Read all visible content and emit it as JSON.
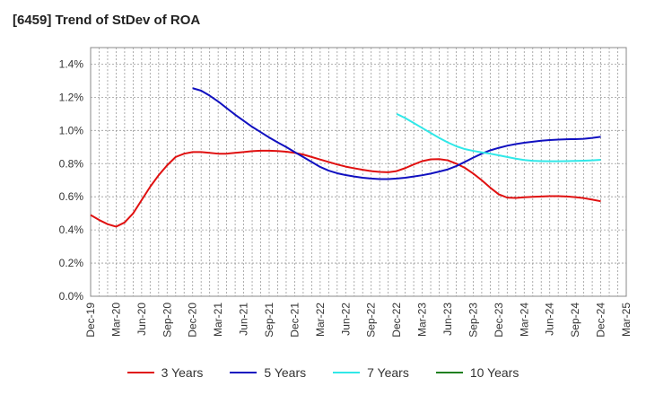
{
  "chart_data": {
    "type": "line",
    "title": "[6459]  Trend of StDev of ROA",
    "xlabel": "",
    "ylabel": "",
    "ylim": [
      0,
      1.5
    ],
    "y_ticks": [
      0,
      0.2,
      0.4,
      0.6,
      0.8,
      1.0,
      1.2,
      1.4
    ],
    "y_tick_labels": [
      "0.0%",
      "0.2%",
      "0.4%",
      "0.6%",
      "0.8%",
      "1.0%",
      "1.2%",
      "1.4%"
    ],
    "x_tick_labels": [
      "Dec-19",
      "Mar-20",
      "Jun-20",
      "Sep-20",
      "Dec-20",
      "Mar-21",
      "Jun-21",
      "Sep-21",
      "Dec-21",
      "Mar-22",
      "Jun-22",
      "Sep-22",
      "Dec-22",
      "Mar-23",
      "Jun-23",
      "Sep-23",
      "Dec-23",
      "Mar-24",
      "Jun-24",
      "Sep-24",
      "Dec-24",
      "Mar-25"
    ],
    "grid": true,
    "legend_position": "bottom",
    "series": [
      {
        "name": "3 Years",
        "color": "#e01010",
        "points": [
          [
            "Dec-19",
            0.49
          ],
          [
            "Jan-20",
            0.46
          ],
          [
            "Feb-20",
            0.435
          ],
          [
            "Mar-20",
            0.42
          ],
          [
            "Apr-20",
            0.445
          ],
          [
            "May-20",
            0.5
          ],
          [
            "Jun-20",
            0.58
          ],
          [
            "Jul-20",
            0.66
          ],
          [
            "Aug-20",
            0.73
          ],
          [
            "Sep-20",
            0.79
          ],
          [
            "Oct-20",
            0.84
          ],
          [
            "Nov-20",
            0.86
          ],
          [
            "Dec-20",
            0.87
          ],
          [
            "Jan-21",
            0.87
          ],
          [
            "Feb-21",
            0.865
          ],
          [
            "Mar-21",
            0.86
          ],
          [
            "Apr-21",
            0.86
          ],
          [
            "May-21",
            0.865
          ],
          [
            "Jun-21",
            0.87
          ],
          [
            "Jul-21",
            0.875
          ],
          [
            "Aug-21",
            0.878
          ],
          [
            "Sep-21",
            0.878
          ],
          [
            "Oct-21",
            0.876
          ],
          [
            "Nov-21",
            0.872
          ],
          [
            "Dec-21",
            0.865
          ],
          [
            "Jan-22",
            0.855
          ],
          [
            "Feb-22",
            0.84
          ],
          [
            "Mar-22",
            0.825
          ],
          [
            "Apr-22",
            0.81
          ],
          [
            "May-22",
            0.795
          ],
          [
            "Jun-22",
            0.782
          ],
          [
            "Jul-22",
            0.772
          ],
          [
            "Aug-22",
            0.763
          ],
          [
            "Sep-22",
            0.755
          ],
          [
            "Oct-22",
            0.75
          ],
          [
            "Nov-22",
            0.748
          ],
          [
            "Dec-22",
            0.755
          ],
          [
            "Jan-23",
            0.773
          ],
          [
            "Feb-23",
            0.795
          ],
          [
            "Mar-23",
            0.815
          ],
          [
            "Apr-23",
            0.826
          ],
          [
            "May-23",
            0.827
          ],
          [
            "Jun-23",
            0.82
          ],
          [
            "Jul-23",
            0.8
          ],
          [
            "Aug-23",
            0.775
          ],
          [
            "Sep-23",
            0.74
          ],
          [
            "Oct-23",
            0.7
          ],
          [
            "Nov-23",
            0.655
          ],
          [
            "Dec-23",
            0.615
          ],
          [
            "Jan-24",
            0.595
          ],
          [
            "Feb-24",
            0.593
          ],
          [
            "Mar-24",
            0.597
          ],
          [
            "Apr-24",
            0.6
          ],
          [
            "May-24",
            0.602
          ],
          [
            "Jun-24",
            0.604
          ],
          [
            "Jul-24",
            0.604
          ],
          [
            "Aug-24",
            0.602
          ],
          [
            "Sep-24",
            0.598
          ],
          [
            "Oct-24",
            0.592
          ],
          [
            "Nov-24",
            0.583
          ],
          [
            "Dec-24",
            0.573
          ]
        ]
      },
      {
        "name": "5 Years",
        "color": "#1010c0",
        "points": [
          [
            "Dec-20",
            1.255
          ],
          [
            "Jan-21",
            1.24
          ],
          [
            "Feb-21",
            1.21
          ],
          [
            "Mar-21",
            1.175
          ],
          [
            "Apr-21",
            1.135
          ],
          [
            "May-21",
            1.095
          ],
          [
            "Jun-21",
            1.058
          ],
          [
            "Jul-21",
            1.022
          ],
          [
            "Aug-21",
            0.99
          ],
          [
            "Sep-21",
            0.958
          ],
          [
            "Oct-21",
            0.928
          ],
          [
            "Nov-21",
            0.9
          ],
          [
            "Dec-21",
            0.87
          ],
          [
            "Jan-22",
            0.84
          ],
          [
            "Feb-22",
            0.81
          ],
          [
            "Mar-22",
            0.78
          ],
          [
            "Apr-22",
            0.758
          ],
          [
            "May-22",
            0.742
          ],
          [
            "Jun-22",
            0.731
          ],
          [
            "Jul-22",
            0.722
          ],
          [
            "Aug-22",
            0.715
          ],
          [
            "Sep-22",
            0.71
          ],
          [
            "Oct-22",
            0.707
          ],
          [
            "Nov-22",
            0.707
          ],
          [
            "Dec-22",
            0.71
          ],
          [
            "Jan-23",
            0.715
          ],
          [
            "Feb-23",
            0.722
          ],
          [
            "Mar-23",
            0.73
          ],
          [
            "Apr-23",
            0.74
          ],
          [
            "May-23",
            0.752
          ],
          [
            "Jun-23",
            0.765
          ],
          [
            "Jul-23",
            0.785
          ],
          [
            "Aug-23",
            0.81
          ],
          [
            "Sep-23",
            0.836
          ],
          [
            "Oct-23",
            0.86
          ],
          [
            "Nov-23",
            0.88
          ],
          [
            "Dec-23",
            0.895
          ],
          [
            "Jan-24",
            0.908
          ],
          [
            "Feb-24",
            0.918
          ],
          [
            "Mar-24",
            0.926
          ],
          [
            "Apr-24",
            0.932
          ],
          [
            "May-24",
            0.938
          ],
          [
            "Jun-24",
            0.942
          ],
          [
            "Jul-24",
            0.945
          ],
          [
            "Aug-24",
            0.947
          ],
          [
            "Sep-24",
            0.948
          ],
          [
            "Oct-24",
            0.95
          ],
          [
            "Nov-24",
            0.955
          ],
          [
            "Dec-24",
            0.962
          ]
        ]
      },
      {
        "name": "7 Years",
        "color": "#30e8e8",
        "points": [
          [
            "Dec-22",
            1.1
          ],
          [
            "Jan-23",
            1.075
          ],
          [
            "Feb-23",
            1.045
          ],
          [
            "Mar-23",
            1.015
          ],
          [
            "Apr-23",
            0.985
          ],
          [
            "May-23",
            0.955
          ],
          [
            "Jun-23",
            0.928
          ],
          [
            "Jul-23",
            0.905
          ],
          [
            "Aug-23",
            0.888
          ],
          [
            "Sep-23",
            0.877
          ],
          [
            "Oct-23",
            0.868
          ],
          [
            "Nov-23",
            0.86
          ],
          [
            "Dec-23",
            0.85
          ],
          [
            "Jan-24",
            0.84
          ],
          [
            "Feb-24",
            0.83
          ],
          [
            "Mar-24",
            0.822
          ],
          [
            "Apr-24",
            0.817
          ],
          [
            "May-24",
            0.815
          ],
          [
            "Jun-24",
            0.814
          ],
          [
            "Jul-24",
            0.814
          ],
          [
            "Aug-24",
            0.815
          ],
          [
            "Sep-24",
            0.816
          ],
          [
            "Oct-24",
            0.818
          ],
          [
            "Nov-24",
            0.82
          ],
          [
            "Dec-24",
            0.823
          ]
        ]
      },
      {
        "name": "10 Years",
        "color": "#208020",
        "points": []
      }
    ]
  }
}
